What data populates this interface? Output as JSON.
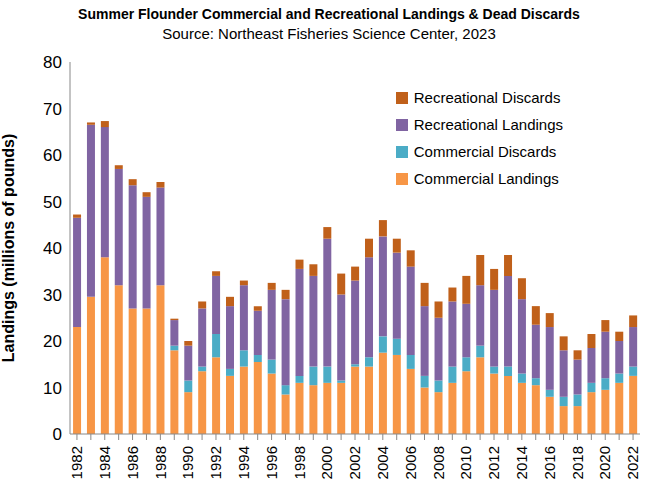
{
  "chart_data": {
    "type": "bar",
    "title": "Summer Flounder Commercial and Recreational Landings & Dead Discards",
    "subtitle": "Source: Northeast Fisheries Science Center, 2023",
    "y_label": "Landings (millions of pounds)",
    "categories": [
      "1982",
      null,
      "1984",
      null,
      "1986",
      null,
      "1988",
      null,
      "1990",
      null,
      "1992",
      null,
      "1994",
      null,
      "1996",
      null,
      "1998",
      null,
      "2000",
      null,
      "2002",
      null,
      "2004",
      null,
      "2006",
      null,
      "2008",
      null,
      "2010",
      null,
      "2012",
      null,
      "2014",
      null,
      "2016",
      null,
      "2018",
      null,
      "2020",
      null,
      "2022"
    ],
    "series": [
      {
        "name": "Commercial Landings",
        "color": "#f79646",
        "values": [
          23,
          29.5,
          38,
          32,
          27,
          27,
          32,
          18,
          9,
          13.5,
          16.5,
          12.5,
          14.5,
          15.5,
          13,
          8.5,
          11,
          10.5,
          11,
          11,
          14.5,
          14.5,
          17.5,
          17,
          14,
          10,
          9,
          11,
          13.5,
          16.5,
          13,
          12.5,
          11,
          10.5,
          8,
          6,
          6,
          9,
          9.5,
          11,
          12.5
        ]
      },
      {
        "name": "Commercial Discards",
        "color": "#4bacc6",
        "values": [
          0,
          0,
          0,
          0,
          0,
          0,
          0,
          1,
          2.5,
          1,
          5,
          1.5,
          3.5,
          1.5,
          3,
          2,
          1.5,
          4,
          3.5,
          0.5,
          0.5,
          2,
          3.5,
          3.5,
          3,
          2.5,
          2.5,
          3.5,
          3,
          2.5,
          1.5,
          2,
          2,
          1.5,
          1.5,
          2,
          2.5,
          2,
          2.5,
          2,
          2
        ]
      },
      {
        "name": "Recreational Landings",
        "color": "#8064a2",
        "values": [
          23.5,
          37,
          28,
          25,
          26.5,
          24,
          21,
          5.5,
          7.5,
          12.5,
          12.5,
          13.5,
          14,
          9.5,
          15,
          18.5,
          23,
          19.5,
          27.5,
          18.5,
          18,
          21.5,
          21.5,
          18.5,
          19,
          15,
          13.5,
          14,
          11.5,
          13,
          16.5,
          19.5,
          16,
          11.5,
          13.5,
          10,
          7.5,
          7.5,
          10,
          7,
          8.5
        ]
      },
      {
        "name": "Recreational Discards",
        "color": "#c0601a",
        "values": [
          0.7,
          0.5,
          1.3,
          0.8,
          1.3,
          1,
          1.2,
          0.3,
          1,
          1.5,
          1,
          2,
          1,
          1,
          1.5,
          2,
          2,
          2.5,
          2.5,
          4.5,
          3,
          4,
          3.5,
          3,
          3.5,
          5,
          3.5,
          3,
          6,
          6.5,
          4.5,
          4.5,
          4.5,
          4,
          3,
          3,
          2,
          3,
          2.5,
          2,
          2.5
        ]
      }
    ],
    "ylim": [
      0,
      80
    ],
    "yticks": [
      0,
      10,
      20,
      30,
      40,
      50,
      60,
      70,
      80
    ],
    "stacked": true,
    "grid": false,
    "legend": "upper right"
  }
}
